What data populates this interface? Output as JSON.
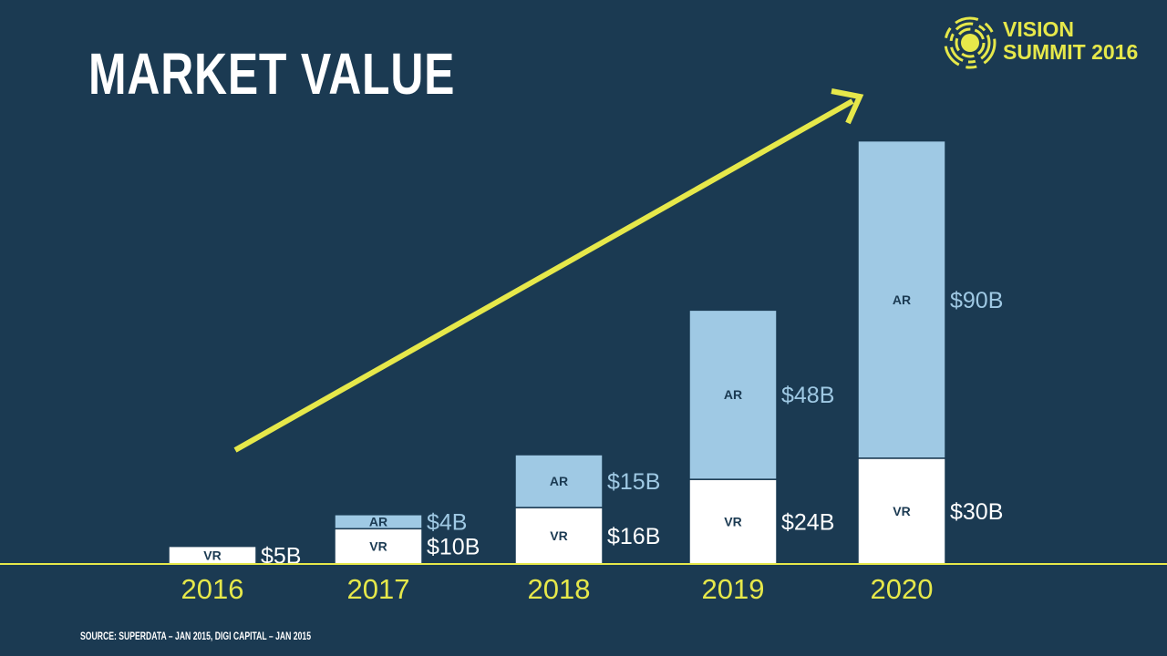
{
  "title": "MARKET VALUE",
  "logo": {
    "line1": "VISION",
    "line2": "SUMMIT 2016"
  },
  "source": "SOURCE: SUPERDATA – JAN 2015, DIGI CAPITAL – JAN 2015",
  "colors": {
    "background": "#1b3a52",
    "vr": "#ffffff",
    "ar": "#9fc9e4",
    "accent": "#e6e84a"
  },
  "chart_data": {
    "type": "bar",
    "stacked": true,
    "title": "MARKET VALUE",
    "categories": [
      "2016",
      "2017",
      "2018",
      "2019",
      "2020"
    ],
    "series": [
      {
        "name": "VR",
        "values": [
          5,
          10,
          16,
          24,
          30
        ],
        "labels": [
          "$5B",
          "$10B",
          "$16B",
          "$24B",
          "$30B"
        ]
      },
      {
        "name": "AR",
        "values": [
          0,
          4,
          15,
          48,
          90
        ],
        "labels": [
          "",
          "$4B",
          "$15B",
          "$48B",
          "$90B"
        ]
      }
    ],
    "units": "billion USD",
    "xlabel": "",
    "ylabel": "",
    "ylim": [
      0,
      120
    ],
    "grid": false,
    "annotations": [
      "upward trend arrow"
    ]
  }
}
